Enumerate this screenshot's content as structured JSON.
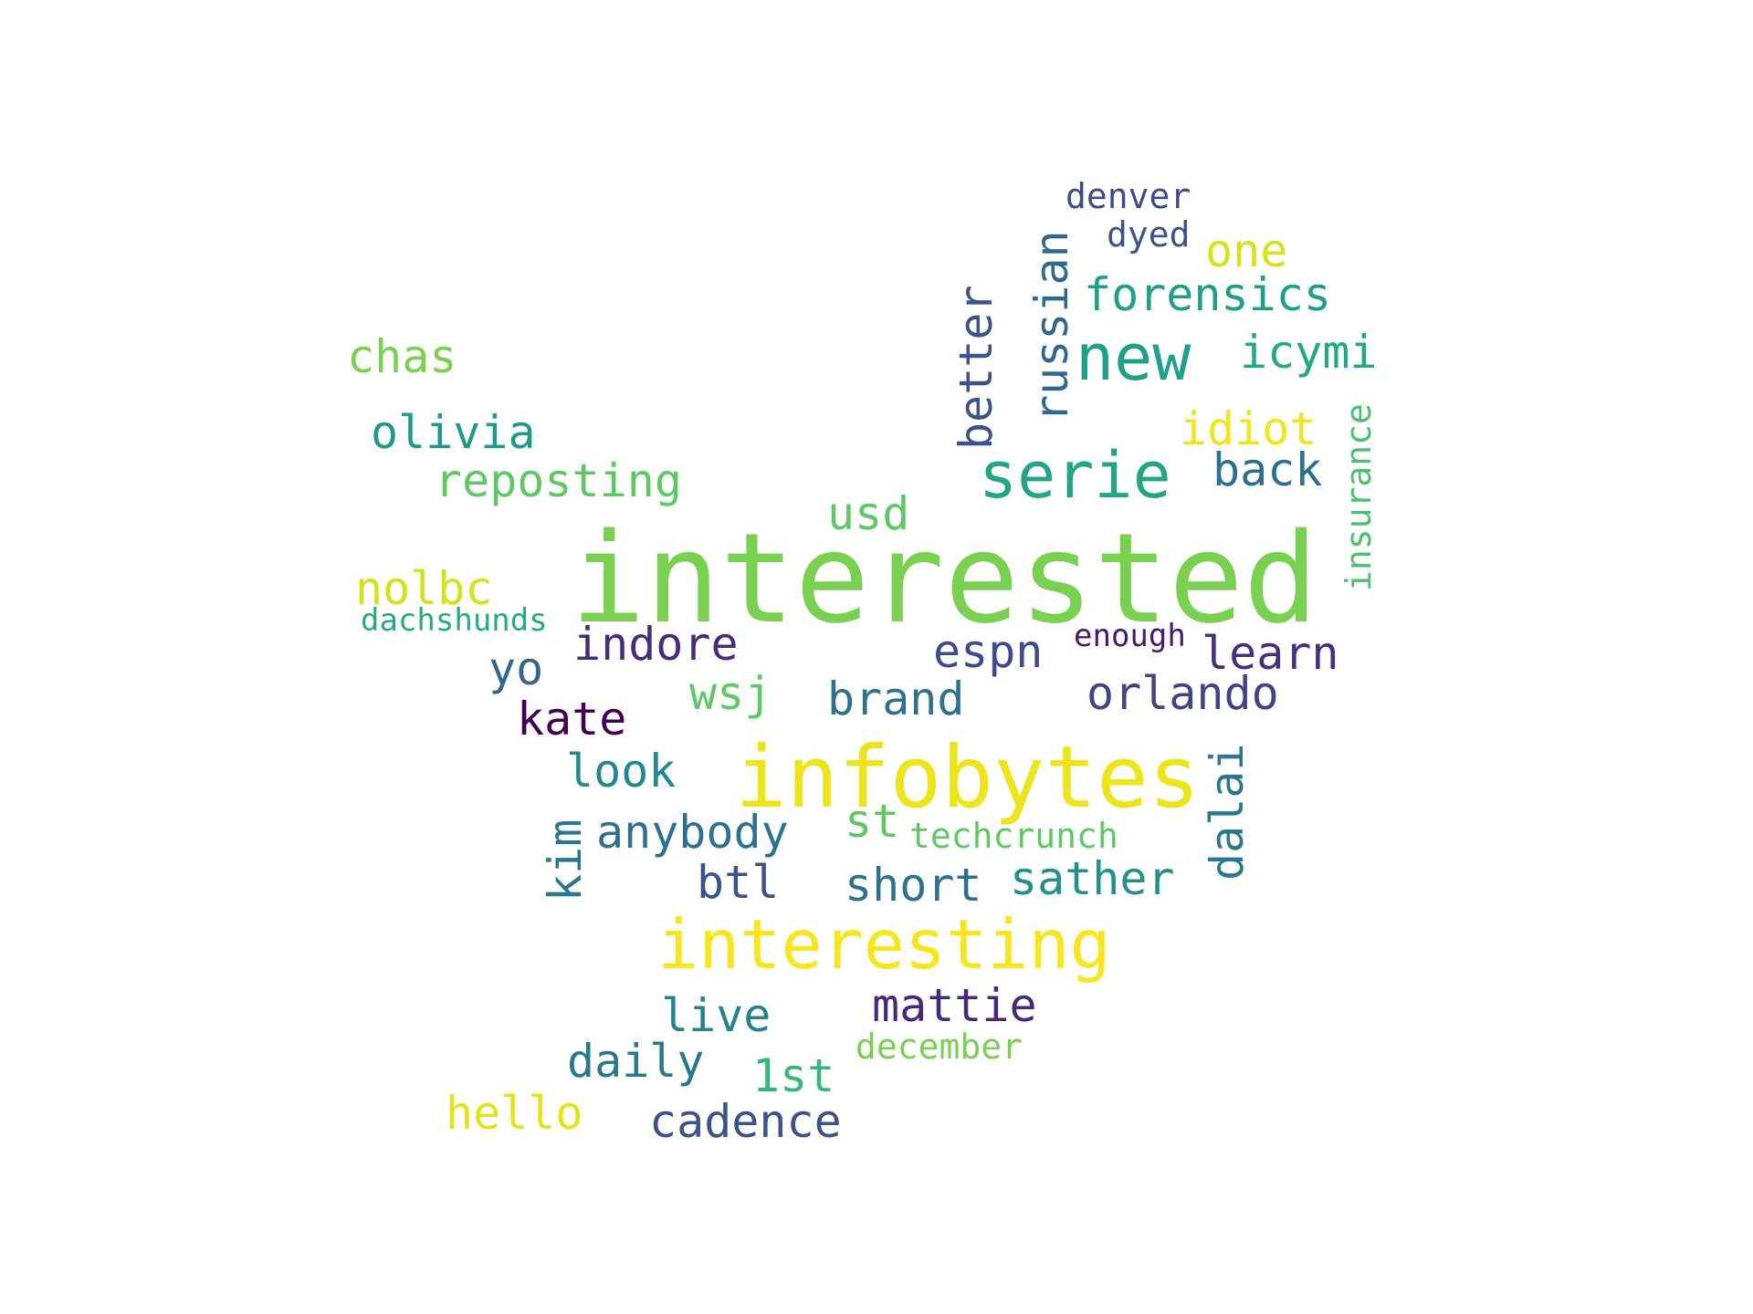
{
  "words": [
    {
      "text": "interested",
      "color": "#7ad151"
    },
    {
      "text": "infobytes",
      "color": "#ece51b"
    },
    {
      "text": "interesting",
      "color": "#f5e61e"
    },
    {
      "text": "serie",
      "color": "#21a585"
    },
    {
      "text": "new",
      "color": "#1fa088"
    },
    {
      "text": "chas",
      "color": "#7ad151"
    },
    {
      "text": "olivia",
      "color": "#1f9a8a"
    },
    {
      "text": "reposting",
      "color": "#5ec962"
    },
    {
      "text": "usd",
      "color": "#5ec962"
    },
    {
      "text": "nolbc",
      "color": "#d2e21b"
    },
    {
      "text": "dachshunds",
      "color": "#25ab82"
    },
    {
      "text": "indore",
      "color": "#472c7a"
    },
    {
      "text": "yo",
      "color": "#31688e"
    },
    {
      "text": "wsj",
      "color": "#5ec962"
    },
    {
      "text": "kate",
      "color": "#440154"
    },
    {
      "text": "brand",
      "color": "#2c728e"
    },
    {
      "text": "espn",
      "color": "#3e4a89"
    },
    {
      "text": "enough",
      "color": "#48186a"
    },
    {
      "text": "learn",
      "color": "#472f7d"
    },
    {
      "text": "orlando",
      "color": "#414487"
    },
    {
      "text": "look",
      "color": "#23898e"
    },
    {
      "text": "anybody",
      "color": "#2c728e"
    },
    {
      "text": "st",
      "color": "#5ec962"
    },
    {
      "text": "techcrunch",
      "color": "#5ec962"
    },
    {
      "text": "btl",
      "color": "#3b528b"
    },
    {
      "text": "short",
      "color": "#2c728e"
    },
    {
      "text": "sather",
      "color": "#21918c"
    },
    {
      "text": "live",
      "color": "#26828e"
    },
    {
      "text": "mattie",
      "color": "#482878"
    },
    {
      "text": "daily",
      "color": "#2a788e"
    },
    {
      "text": "1st",
      "color": "#35b779"
    },
    {
      "text": "december",
      "color": "#7ad151"
    },
    {
      "text": "hello",
      "color": "#e3e418"
    },
    {
      "text": "cadence",
      "color": "#3b528b"
    },
    {
      "text": "one",
      "color": "#d8e219"
    },
    {
      "text": "forensics",
      "color": "#1f9e89"
    },
    {
      "text": "icymi",
      "color": "#22a884"
    },
    {
      "text": "idiot",
      "color": "#f1e51d"
    },
    {
      "text": "back",
      "color": "#2d708e"
    },
    {
      "text": "denver",
      "color": "#3e4a89"
    },
    {
      "text": "dyed",
      "color": "#3b528b"
    },
    {
      "text": "better",
      "color": "#3b528b"
    },
    {
      "text": "russian",
      "color": "#31688e"
    },
    {
      "text": "insurance",
      "color": "#4ac16d"
    },
    {
      "text": "kim",
      "color": "#2a788e"
    },
    {
      "text": "dalai",
      "color": "#2a788e"
    }
  ]
}
